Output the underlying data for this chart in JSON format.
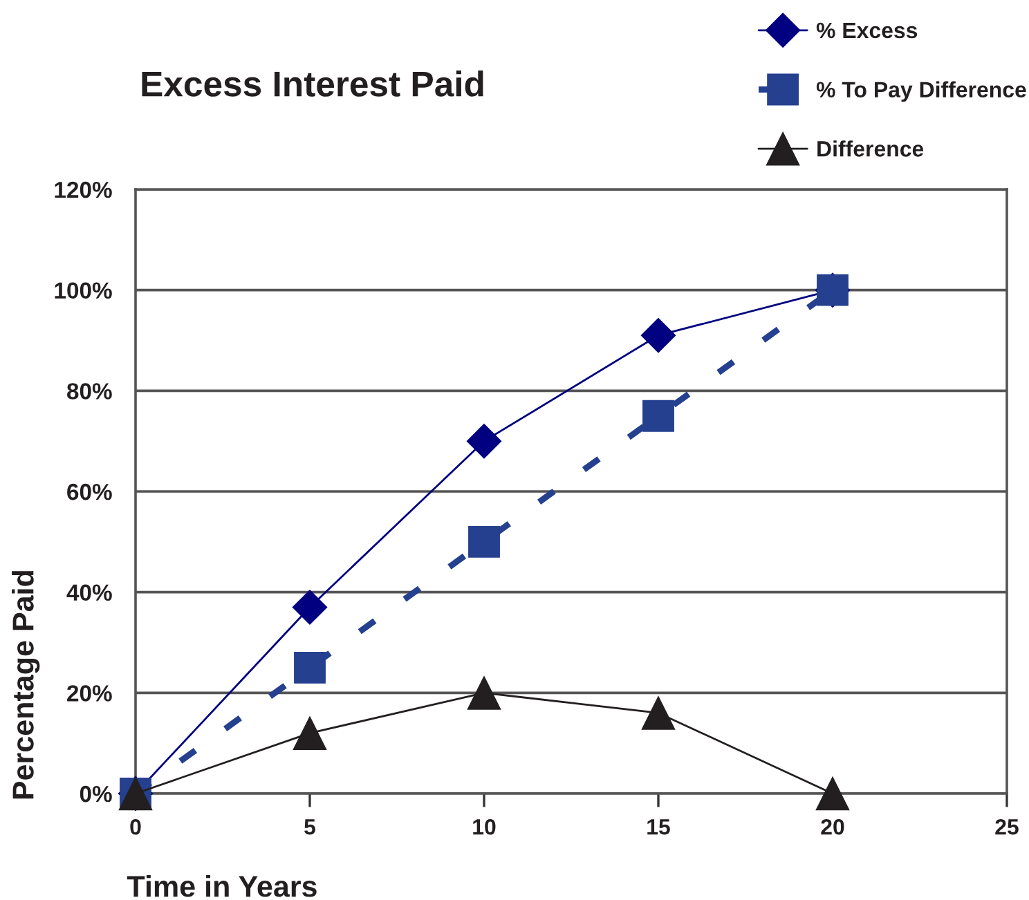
{
  "chart_data": {
    "type": "line",
    "title": "Excess Interest Paid",
    "xlabel": "Time in Years",
    "ylabel": "Percentage Paid",
    "x": [
      0,
      5,
      10,
      15,
      20
    ],
    "series": [
      {
        "name": "% Excess",
        "color": "#000080",
        "values": [
          0,
          37,
          70,
          91,
          100
        ],
        "marker": "diamond",
        "line_style": "solid"
      },
      {
        "name": "% To Pay Difference",
        "color": "#25408f",
        "values": [
          0,
          25,
          50,
          75,
          100
        ],
        "marker": "square",
        "line_style": "dashed"
      },
      {
        "name": "Difference",
        "color": "#231f20",
        "values": [
          0,
          12,
          20,
          16,
          0
        ],
        "marker": "triangle",
        "line_style": "solid"
      }
    ],
    "xlim": [
      0,
      25
    ],
    "xticks": [
      0,
      5,
      10,
      15,
      20,
      25
    ],
    "ylim": [
      0,
      120
    ],
    "yticks": [
      {
        "value": 0,
        "label": "0%"
      },
      {
        "value": 20,
        "label": "20%"
      },
      {
        "value": 40,
        "label": "40%"
      },
      {
        "value": 60,
        "label": "60%"
      },
      {
        "value": 80,
        "label": "80%"
      },
      {
        "value": 100,
        "label": "100%"
      },
      {
        "value": 120,
        "label": "120%"
      }
    ],
    "grid": "y",
    "legend": "top right"
  }
}
